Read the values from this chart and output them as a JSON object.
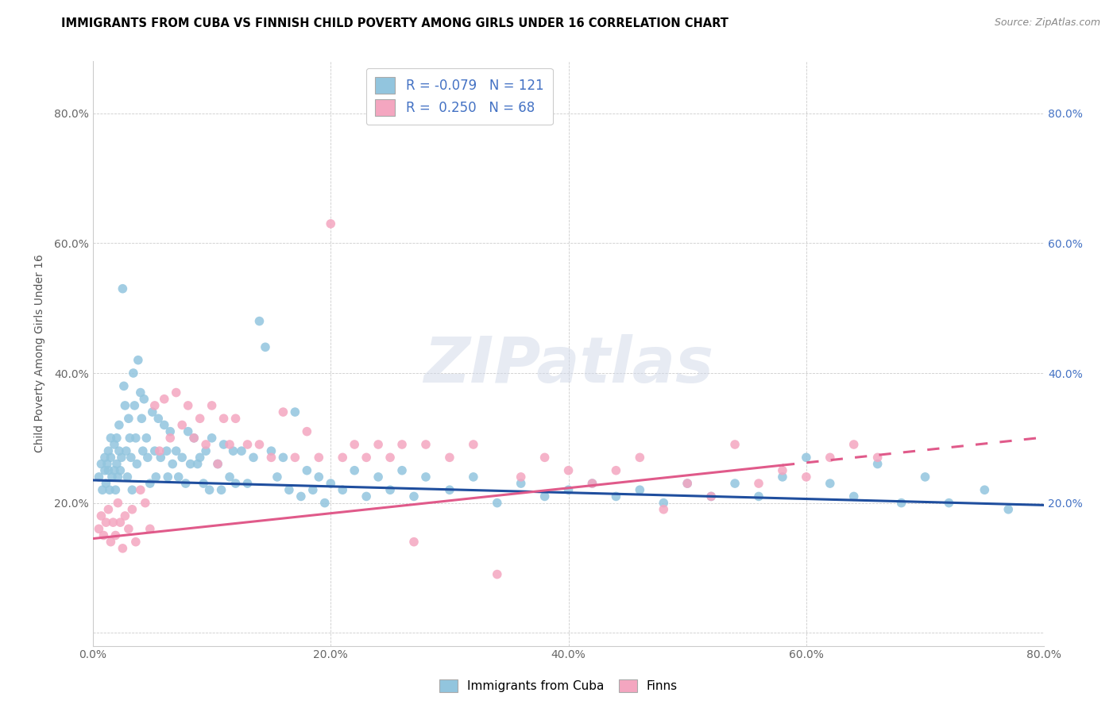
{
  "title": "IMMIGRANTS FROM CUBA VS FINNISH CHILD POVERTY AMONG GIRLS UNDER 16 CORRELATION CHART",
  "source": "Source: ZipAtlas.com",
  "ylabel": "Child Poverty Among Girls Under 16",
  "xlim": [
    0.0,
    0.8
  ],
  "ylim": [
    -0.02,
    0.88
  ],
  "x_ticks": [
    0.0,
    0.2,
    0.4,
    0.6,
    0.8
  ],
  "y_ticks": [
    0.0,
    0.2,
    0.4,
    0.6,
    0.8
  ],
  "blue_color": "#92c5de",
  "pink_color": "#f4a6c0",
  "blue_line_color": "#1f4e9e",
  "pink_line_color": "#e05a8a",
  "watermark": "ZIPatlas",
  "blue_R": -0.079,
  "blue_N": 121,
  "pink_R": 0.25,
  "pink_N": 68,
  "blue_intercept": 0.235,
  "blue_slope": -0.048,
  "pink_intercept": 0.145,
  "pink_slope": 0.195,
  "blue_points_x": [
    0.005,
    0.007,
    0.008,
    0.01,
    0.01,
    0.011,
    0.012,
    0.013,
    0.013,
    0.014,
    0.015,
    0.015,
    0.016,
    0.018,
    0.018,
    0.019,
    0.02,
    0.02,
    0.021,
    0.022,
    0.022,
    0.023,
    0.024,
    0.025,
    0.026,
    0.027,
    0.028,
    0.029,
    0.03,
    0.031,
    0.032,
    0.033,
    0.034,
    0.035,
    0.036,
    0.037,
    0.038,
    0.04,
    0.041,
    0.042,
    0.043,
    0.045,
    0.046,
    0.048,
    0.05,
    0.052,
    0.053,
    0.055,
    0.057,
    0.06,
    0.062,
    0.063,
    0.065,
    0.067,
    0.07,
    0.072,
    0.075,
    0.078,
    0.08,
    0.082,
    0.085,
    0.088,
    0.09,
    0.093,
    0.095,
    0.098,
    0.1,
    0.105,
    0.108,
    0.11,
    0.115,
    0.118,
    0.12,
    0.125,
    0.13,
    0.135,
    0.14,
    0.145,
    0.15,
    0.155,
    0.16,
    0.165,
    0.17,
    0.175,
    0.18,
    0.185,
    0.19,
    0.195,
    0.2,
    0.21,
    0.22,
    0.23,
    0.24,
    0.25,
    0.26,
    0.27,
    0.28,
    0.3,
    0.32,
    0.34,
    0.36,
    0.38,
    0.4,
    0.42,
    0.44,
    0.46,
    0.48,
    0.5,
    0.52,
    0.54,
    0.56,
    0.58,
    0.6,
    0.62,
    0.64,
    0.66,
    0.68,
    0.7,
    0.72,
    0.75,
    0.77
  ],
  "blue_points_y": [
    0.24,
    0.26,
    0.22,
    0.25,
    0.27,
    0.23,
    0.26,
    0.25,
    0.28,
    0.22,
    0.27,
    0.3,
    0.24,
    0.29,
    0.25,
    0.22,
    0.3,
    0.26,
    0.24,
    0.28,
    0.32,
    0.25,
    0.27,
    0.53,
    0.38,
    0.35,
    0.28,
    0.24,
    0.33,
    0.3,
    0.27,
    0.22,
    0.4,
    0.35,
    0.3,
    0.26,
    0.42,
    0.37,
    0.33,
    0.28,
    0.36,
    0.3,
    0.27,
    0.23,
    0.34,
    0.28,
    0.24,
    0.33,
    0.27,
    0.32,
    0.28,
    0.24,
    0.31,
    0.26,
    0.28,
    0.24,
    0.27,
    0.23,
    0.31,
    0.26,
    0.3,
    0.26,
    0.27,
    0.23,
    0.28,
    0.22,
    0.3,
    0.26,
    0.22,
    0.29,
    0.24,
    0.28,
    0.23,
    0.28,
    0.23,
    0.27,
    0.48,
    0.44,
    0.28,
    0.24,
    0.27,
    0.22,
    0.34,
    0.21,
    0.25,
    0.22,
    0.24,
    0.2,
    0.23,
    0.22,
    0.25,
    0.21,
    0.24,
    0.22,
    0.25,
    0.21,
    0.24,
    0.22,
    0.24,
    0.2,
    0.23,
    0.21,
    0.22,
    0.23,
    0.21,
    0.22,
    0.2,
    0.23,
    0.21,
    0.23,
    0.21,
    0.24,
    0.27,
    0.23,
    0.21,
    0.26,
    0.2,
    0.24,
    0.2,
    0.22,
    0.19
  ],
  "pink_points_x": [
    0.005,
    0.007,
    0.009,
    0.011,
    0.013,
    0.015,
    0.017,
    0.019,
    0.021,
    0.023,
    0.025,
    0.027,
    0.03,
    0.033,
    0.036,
    0.04,
    0.044,
    0.048,
    0.052,
    0.056,
    0.06,
    0.065,
    0.07,
    0.075,
    0.08,
    0.085,
    0.09,
    0.095,
    0.1,
    0.105,
    0.11,
    0.115,
    0.12,
    0.13,
    0.14,
    0.15,
    0.16,
    0.17,
    0.18,
    0.19,
    0.2,
    0.21,
    0.22,
    0.23,
    0.24,
    0.25,
    0.26,
    0.27,
    0.28,
    0.3,
    0.32,
    0.34,
    0.36,
    0.38,
    0.4,
    0.42,
    0.44,
    0.46,
    0.48,
    0.5,
    0.52,
    0.54,
    0.56,
    0.58,
    0.6,
    0.62,
    0.64,
    0.66
  ],
  "pink_points_y": [
    0.16,
    0.18,
    0.15,
    0.17,
    0.19,
    0.14,
    0.17,
    0.15,
    0.2,
    0.17,
    0.13,
    0.18,
    0.16,
    0.19,
    0.14,
    0.22,
    0.2,
    0.16,
    0.35,
    0.28,
    0.36,
    0.3,
    0.37,
    0.32,
    0.35,
    0.3,
    0.33,
    0.29,
    0.35,
    0.26,
    0.33,
    0.29,
    0.33,
    0.29,
    0.29,
    0.27,
    0.34,
    0.27,
    0.31,
    0.27,
    0.63,
    0.27,
    0.29,
    0.27,
    0.29,
    0.27,
    0.29,
    0.14,
    0.29,
    0.27,
    0.29,
    0.09,
    0.24,
    0.27,
    0.25,
    0.23,
    0.25,
    0.27,
    0.19,
    0.23,
    0.21,
    0.29,
    0.23,
    0.25,
    0.24,
    0.27,
    0.29,
    0.27
  ]
}
